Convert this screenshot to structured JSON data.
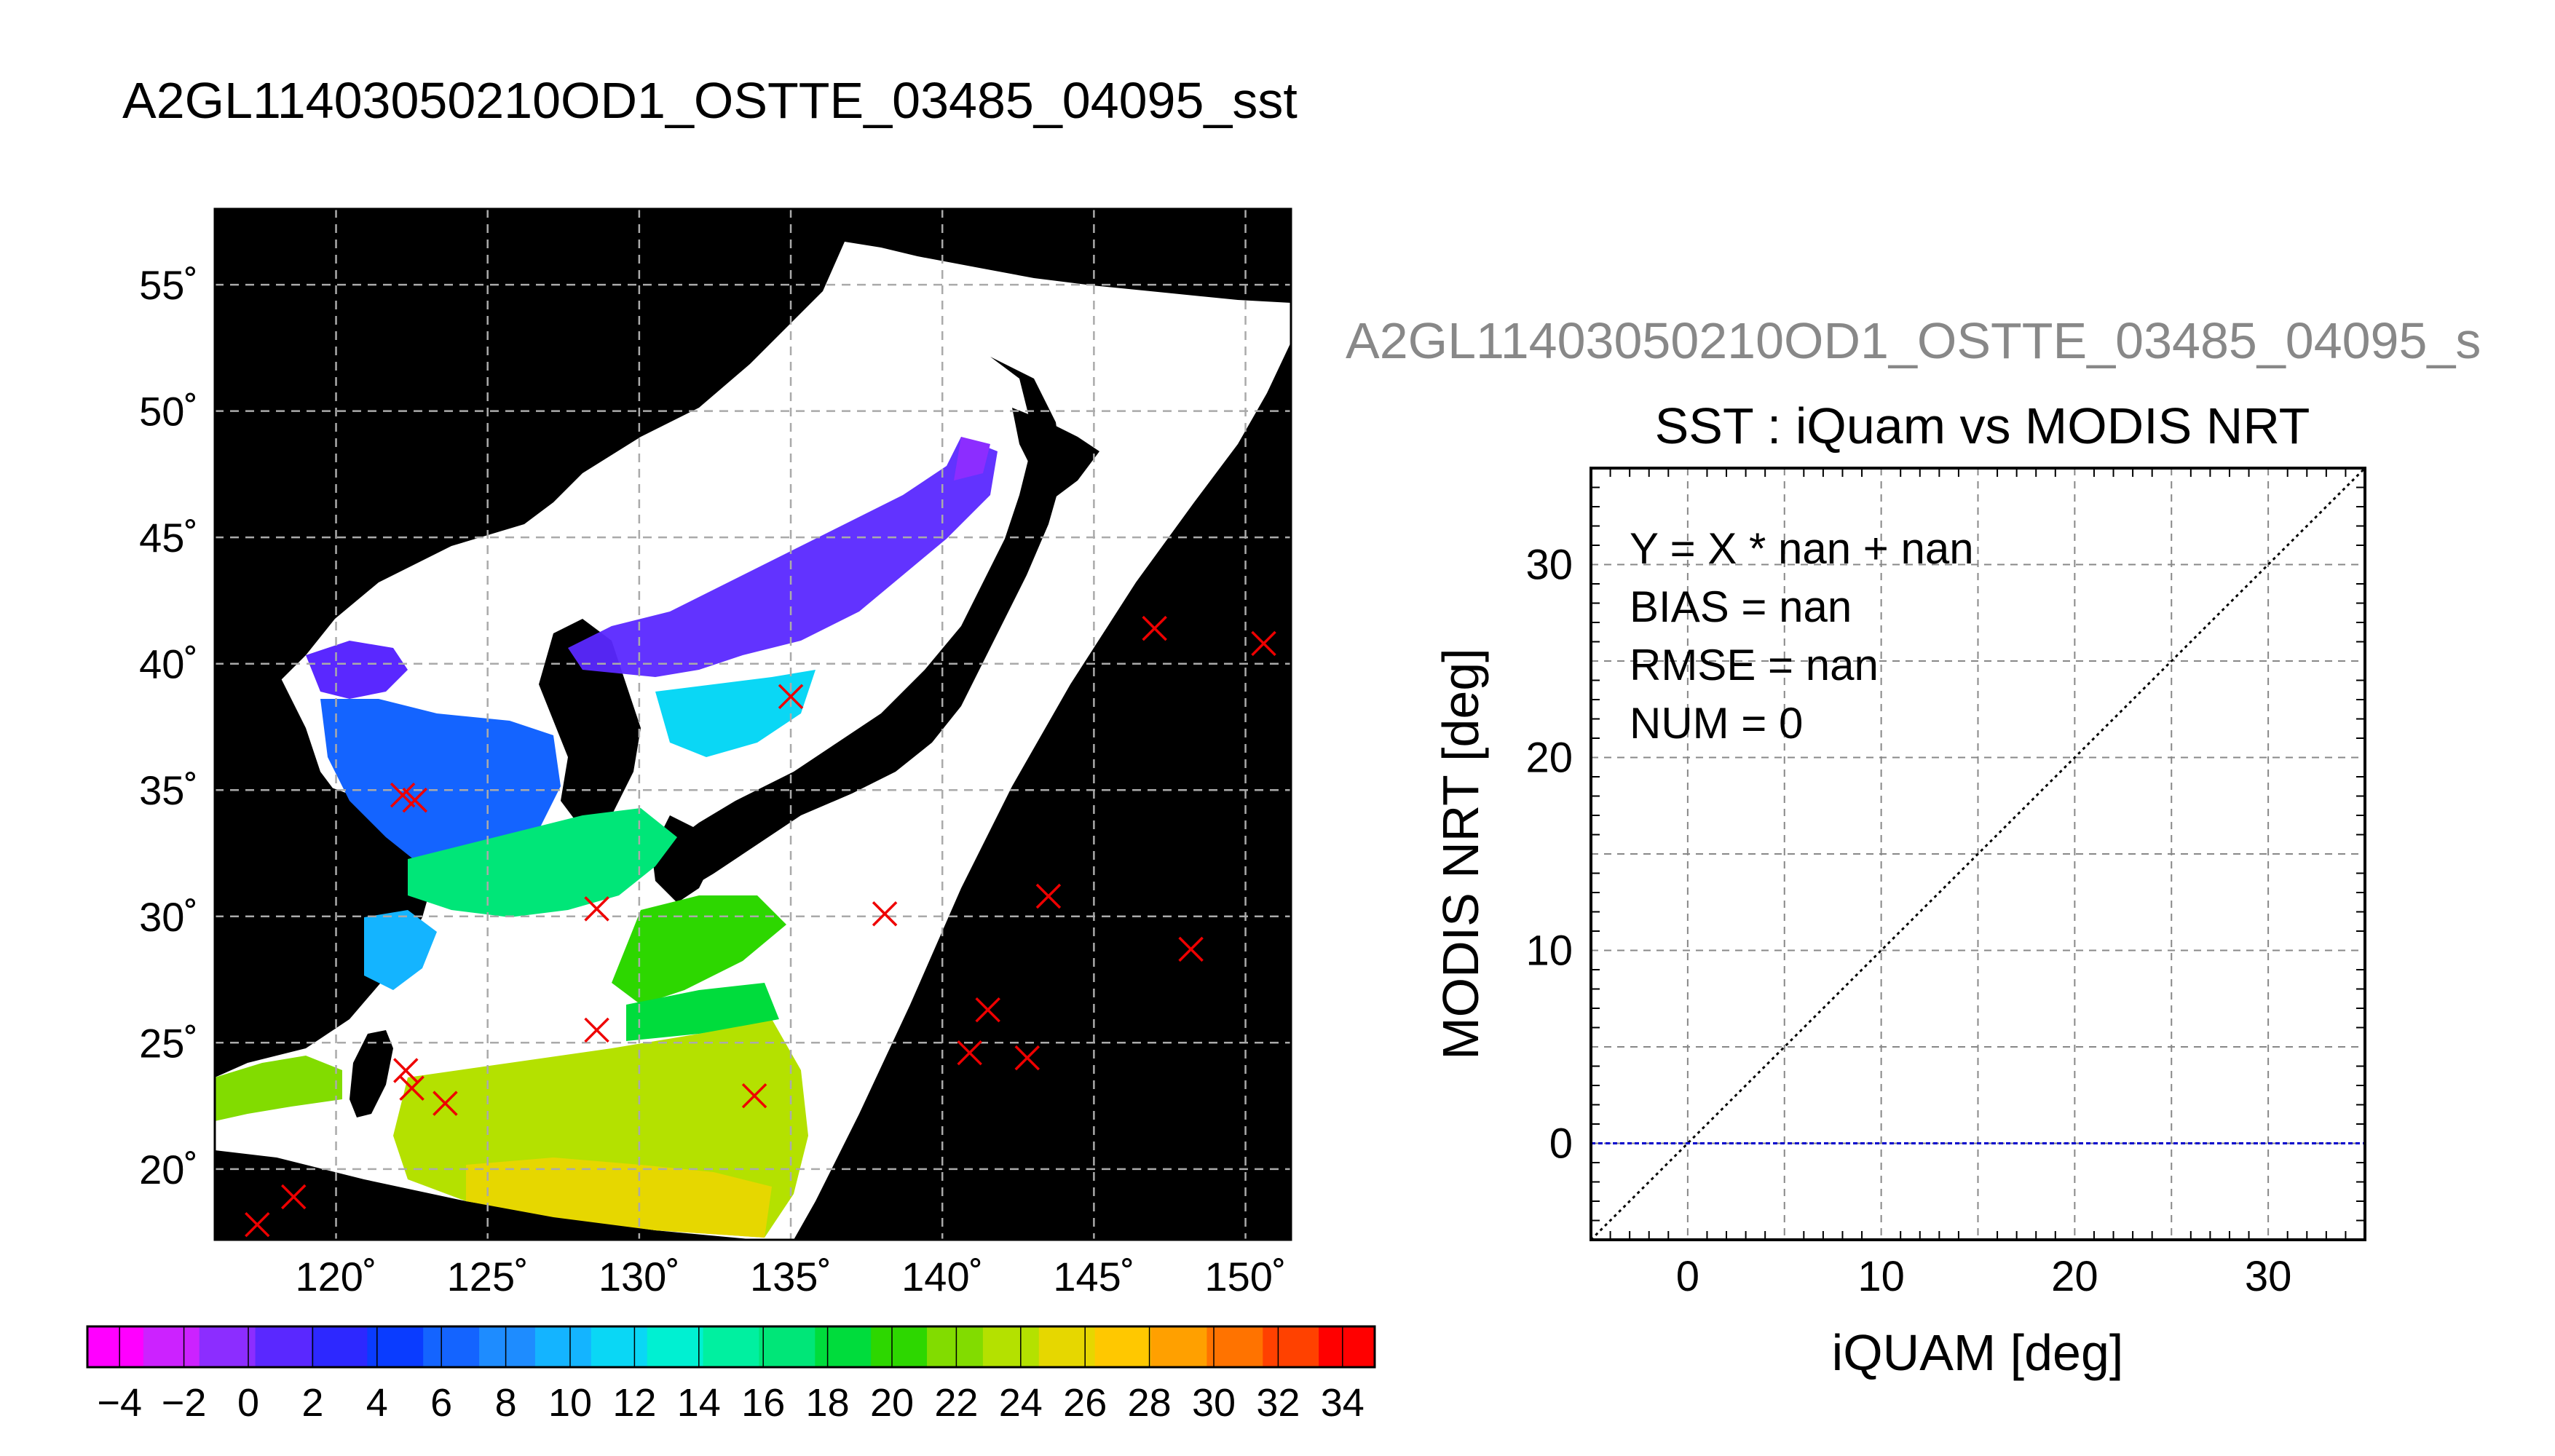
{
  "main_title": "A2GL11403050210OD1_OSTTE_03485_04095_sst",
  "side_title": "A2GL11403050210OD1_OSTTE_03485_04095_s",
  "chart_data": [
    {
      "type": "map",
      "lon_ticks": [
        "120˚",
        "125˚",
        "130˚",
        "135˚",
        "140˚",
        "145˚",
        "150˚"
      ],
      "lat_ticks": [
        "55˚",
        "50˚",
        "45˚",
        "40˚",
        "35˚",
        "30˚",
        "25˚",
        "20˚"
      ],
      "lon_range": [
        116,
        151.5
      ],
      "lat_range": [
        17.2,
        58
      ],
      "colorbar": {
        "min": -5,
        "max": 35,
        "step": 2,
        "tick_labels": [
          "−4",
          "−2",
          "0",
          "2",
          "4",
          "6",
          "8",
          "10",
          "12",
          "14",
          "16",
          "18",
          "20",
          "22",
          "24",
          "26",
          "28",
          "30",
          "32",
          "34"
        ],
        "colors": [
          "#ff00ff",
          "#cc22ff",
          "#8c2dff",
          "#5a28ff",
          "#2d28ff",
          "#0a3cff",
          "#1464ff",
          "#1e8cff",
          "#14b4ff",
          "#0ad7f5",
          "#00f0d2",
          "#00f0a0",
          "#00e678",
          "#00dc3c",
          "#2dd700",
          "#82dc00",
          "#b4e100",
          "#e6d700",
          "#ffc800",
          "#ffa000",
          "#ff7300",
          "#ff4100",
          "#ff0000"
        ]
      },
      "markers": [
        {
          "lon": 117.4,
          "lat": 17.8
        },
        {
          "lon": 118.6,
          "lat": 18.9
        },
        {
          "lon": 122.3,
          "lat": 23.9
        },
        {
          "lon": 122.5,
          "lat": 23.2
        },
        {
          "lon": 123.6,
          "lat": 22.6
        },
        {
          "lon": 122.2,
          "lat": 34.8
        },
        {
          "lon": 122.6,
          "lat": 34.6
        },
        {
          "lon": 128.6,
          "lat": 30.3
        },
        {
          "lon": 128.6,
          "lat": 25.5
        },
        {
          "lon": 133.8,
          "lat": 22.9
        },
        {
          "lon": 135.0,
          "lat": 38.7
        },
        {
          "lon": 138.1,
          "lat": 30.1
        },
        {
          "lon": 140.9,
          "lat": 24.6
        },
        {
          "lon": 141.5,
          "lat": 26.3
        },
        {
          "lon": 142.8,
          "lat": 24.4
        },
        {
          "lon": 143.5,
          "lat": 30.8
        },
        {
          "lon": 147.0,
          "lat": 41.4
        },
        {
          "lon": 148.2,
          "lat": 28.7
        },
        {
          "lon": 150.6,
          "lat": 40.8
        }
      ]
    },
    {
      "type": "scatter",
      "title": "SST : iQuam vs MODIS NRT",
      "xlabel": "iQUAM [deg]",
      "ylabel": "MODIS NRT [deg]",
      "xlim": [
        -5,
        35
      ],
      "ylim": [
        -5,
        35
      ],
      "x_ticks": [
        0,
        10,
        20,
        30
      ],
      "y_ticks": [
        0,
        10,
        20,
        30
      ],
      "grid": true,
      "stats": [
        "Y = X * nan + nan",
        "BIAS = nan",
        "RMSE = nan",
        "NUM = 0"
      ],
      "lines": [
        {
          "name": "",
          "style": "dotted",
          "color": "#000000",
          "x": [
            -5,
            35
          ],
          "y": [
            -5,
            35
          ]
        },
        {
          "name": "",
          "style": "dashed",
          "color": "#0000cc",
          "x": [
            -5,
            35
          ],
          "y": [
            0,
            0
          ]
        }
      ],
      "points": []
    }
  ]
}
